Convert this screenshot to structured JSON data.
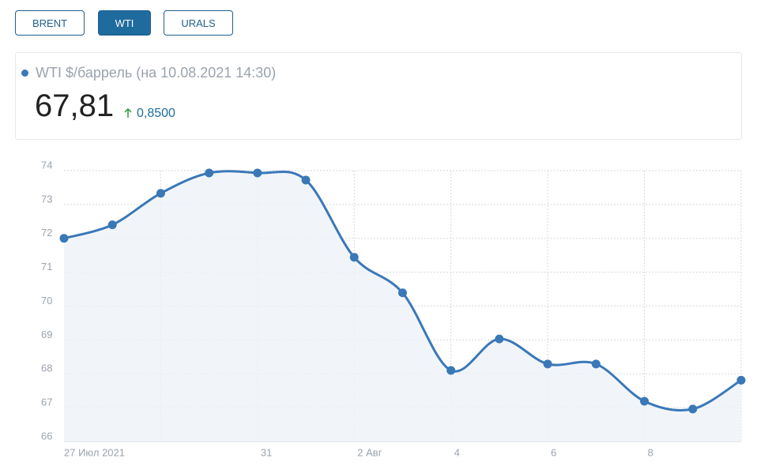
{
  "buttons": [
    "BRENT",
    "WTI",
    "URALS"
  ],
  "active_button": 1,
  "quote": {
    "label": "WTI $/баррель (на 10.08.2021 14:30)",
    "price": "67,81",
    "change": "0,8500"
  },
  "chart_data": {
    "type": "line",
    "categories": [
      "27 Июл 2021",
      null,
      null,
      null,
      "31",
      null,
      "2 Авг",
      null,
      "4",
      null,
      "6",
      null,
      "8",
      null,
      null
    ],
    "series": [
      {
        "name": "WTI",
        "color": "#3a78b8",
        "values": [
          72.0,
          72.4,
          73.33,
          73.93,
          73.93,
          73.72,
          71.44,
          70.39,
          68.1,
          69.03,
          68.29,
          68.29,
          67.19,
          66.96,
          67.81
        ]
      }
    ],
    "ylim": [
      66,
      74
    ],
    "yticks": [
      66,
      67,
      68,
      69,
      70,
      71,
      72,
      73,
      74
    ],
    "grid": true
  }
}
